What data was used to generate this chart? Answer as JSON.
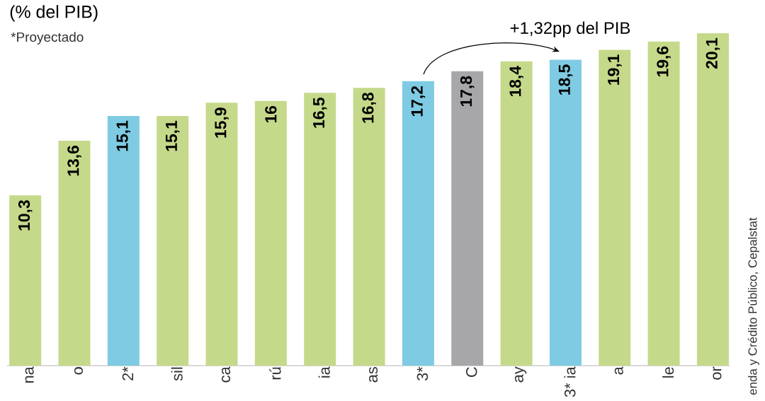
{
  "chart_data": {
    "type": "bar",
    "title": "(% del PIB)",
    "subtitle": "*Proyectado",
    "categories": [
      "na",
      "o",
      "2*",
      "sil",
      "ca",
      "rú",
      "ia",
      "as",
      "3*",
      "C",
      "ay",
      "3* ia",
      "a",
      "le",
      "or"
    ],
    "values": [
      10.3,
      13.6,
      15.1,
      15.1,
      15.9,
      16,
      16.5,
      16.8,
      17.2,
      17.8,
      18.4,
      18.5,
      19.1,
      19.6,
      20.1
    ],
    "colors": [
      "#c5d98a",
      "#c5d98a",
      "#7ecbe3",
      "#c5d98a",
      "#c5d98a",
      "#c5d98a",
      "#c5d98a",
      "#c5d98a",
      "#7ecbe3",
      "#a7a6a9",
      "#c5d98a",
      "#7ecbe3",
      "#c5d98a",
      "#c5d98a",
      "#c5d98a"
    ],
    "value_labels": [
      "10,3",
      "13,6",
      "15,1",
      "15,1",
      "15,9",
      "16",
      "16,5",
      "16,8",
      "17,2",
      "17,8",
      "18,4",
      "18,5",
      "19,1",
      "19,6",
      "20,1"
    ],
    "ylim": [
      0,
      20.1
    ],
    "tick_labels": "x",
    "annotations": [
      "+1,32pp del PIB",
      "enda y Crédito Público, Cepalstat"
    ]
  }
}
